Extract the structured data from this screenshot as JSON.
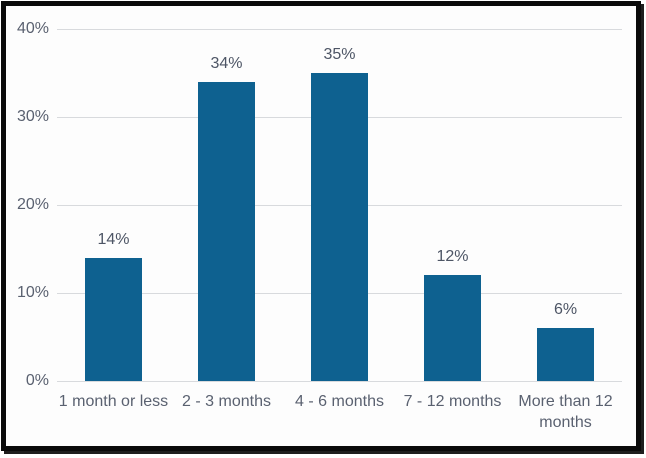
{
  "chart_data": {
    "type": "bar",
    "title": "",
    "xlabel": "",
    "ylabel": "",
    "categories": [
      "1 month or less",
      "2 - 3 months",
      "4 - 6 months",
      "7 - 12 months",
      "More than 12 months"
    ],
    "values": [
      14,
      34,
      35,
      12,
      6
    ],
    "data_labels": [
      "14%",
      "34%",
      "35%",
      "12%",
      "6%"
    ],
    "ylim": [
      0,
      40
    ],
    "ytick_interval": 10,
    "ytick_labels": [
      "0%",
      "10%",
      "20%",
      "30%",
      "40%"
    ],
    "grid": "horizontal",
    "legend": "none",
    "colors": {
      "bar": "#0e6190",
      "gridline": "#d8dadd",
      "axis_text": "#5a6170",
      "data_label_text": "#4d5565",
      "frame_border": "#0a0a0a",
      "background": "#fdfdfd"
    }
  }
}
